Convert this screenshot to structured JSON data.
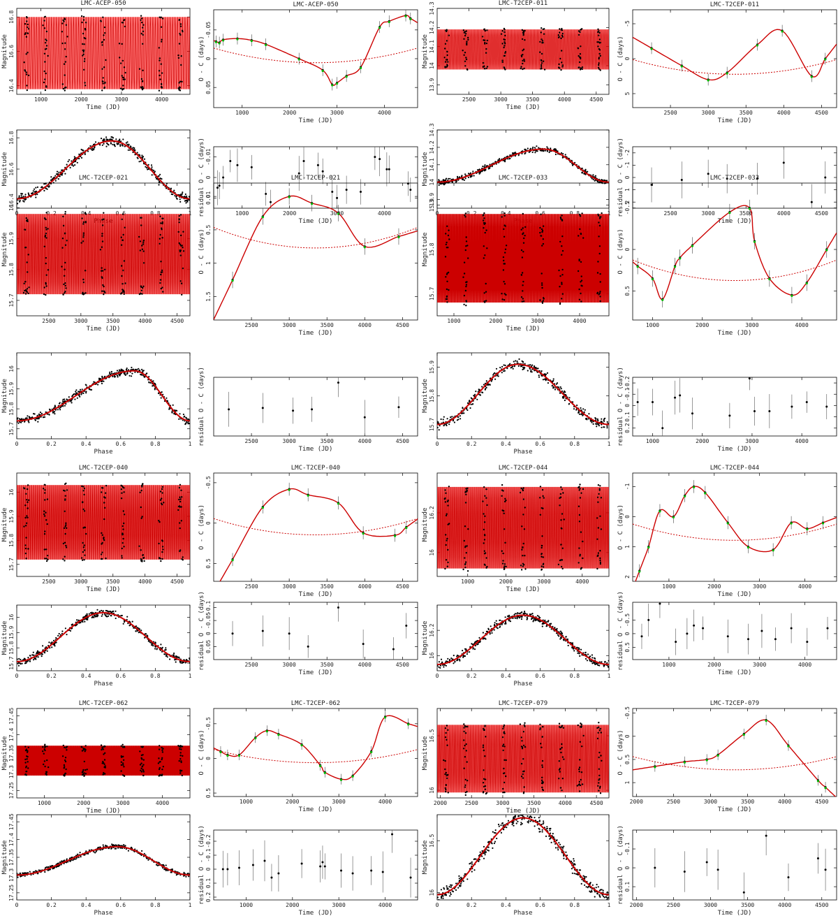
{
  "stars": [
    {
      "name": "LMC-ACEP-050",
      "light": {
        "xlim": [
          400,
          4700
        ],
        "xticks": [
          1000,
          2000,
          3000,
          4000
        ],
        "ylim": [
          16.85,
          16.35
        ],
        "yticks": [
          16.4,
          16.6,
          16.8
        ],
        "bandLo": 16.38,
        "bandHi": 16.8,
        "cycles": 70
      },
      "oc": {
        "xlim": [
          400,
          4700
        ],
        "xticks": [
          1000,
          2000,
          3000,
          4000
        ],
        "ylim": [
          -0.085,
          0.085
        ],
        "yticks": [
          -0.05,
          0,
          0.05
        ],
        "dataX": [
          450,
          520,
          600,
          900,
          1200,
          1500,
          2200,
          2700,
          2900,
          3000,
          3200,
          3500,
          3900,
          4100,
          4450,
          4550
        ],
        "dataY": [
          -0.03,
          -0.028,
          -0.033,
          -0.035,
          -0.032,
          -0.025,
          0.0,
          0.02,
          0.045,
          0.042,
          0.03,
          0.015,
          -0.055,
          -0.065,
          -0.075,
          -0.07
        ]
      },
      "phase": {
        "ylim": [
          16.85,
          16.35
        ],
        "yticks": [
          16.4,
          16.6,
          16.8
        ],
        "mMin": 16.41,
        "mMax": 16.78,
        "phMin": 0.55
      },
      "resid": {
        "xlim": [
          400,
          4700
        ],
        "xticks": [
          1000,
          2000,
          3000,
          4000
        ],
        "ylim": [
          -0.015,
          0.015
        ],
        "yticks": [
          -0.01,
          0,
          0.01
        ],
        "dataX": [
          480,
          520,
          600,
          750,
          900,
          1200,
          1500,
          1600,
          2200,
          2300,
          2600,
          2700,
          2900,
          3000,
          3200,
          3500,
          3800,
          3900,
          4050,
          4100,
          4500,
          4550
        ],
        "dataY": [
          0.005,
          0.004,
          0.0,
          -0.008,
          -0.006,
          -0.005,
          0.008,
          0.012,
          -0.002,
          -0.008,
          -0.006,
          -0.003,
          0.007,
          0.01,
          0.006,
          0.007,
          -0.01,
          -0.009,
          -0.004,
          -0.004,
          0.003,
          0.006
        ]
      }
    },
    {
      "name": "LMC-T2CEP-011",
      "light": {
        "xlim": [
          2000,
          4700
        ],
        "xticks": [
          2500,
          3000,
          3500,
          4000,
          4500
        ],
        "ylim": [
          14.3,
          13.85
        ],
        "yticks": [
          13.9,
          14.0,
          14.1,
          14.2,
          14.3
        ],
        "bandLo": 13.98,
        "bandHi": 14.19,
        "cycles": 120
      },
      "oc": {
        "xlim": [
          2000,
          4700
        ],
        "xticks": [
          2500,
          3000,
          3500,
          4000,
          4500
        ],
        "ylim": [
          -7,
          7
        ],
        "yticks": [
          -5,
          0,
          5
        ],
        "dataX": [
          2250,
          2650,
          3000,
          3250,
          3650,
          3980,
          4370,
          4550
        ],
        "dataY": [
          -1.5,
          1.0,
          3.0,
          2.0,
          -2.0,
          -4.0,
          2.5,
          0.0
        ]
      },
      "phase": {
        "ylim": [
          14.3,
          13.85
        ],
        "yticks": [
          13.9,
          14.0,
          14.1,
          14.2,
          14.3
        ],
        "mMin": 14.0,
        "mMax": 14.19,
        "phMin": 0.62
      },
      "resid": {
        "xlim": [
          2000,
          4700
        ],
        "xticks": [
          2500,
          3000,
          3500,
          4000,
          4500
        ],
        "ylim": [
          -2.5,
          2.5
        ],
        "yticks": [
          -2,
          -1,
          0,
          1,
          2
        ],
        "dataX": [
          2250,
          2650,
          3000,
          3250,
          3650,
          4000,
          4370,
          4550
        ],
        "dataY": [
          0.6,
          0.2,
          -0.3,
          0.1,
          0.1,
          -1.2,
          2.0,
          0.0
        ]
      }
    },
    {
      "name": "LMC-T2CEP-021",
      "light": {
        "xlim": [
          2000,
          4700
        ],
        "xticks": [
          2500,
          3000,
          3500,
          4000,
          4500
        ],
        "ylim": [
          16.08,
          15.65
        ],
        "yticks": [
          15.7,
          15.8,
          15.9,
          16.0
        ],
        "bandLo": 15.72,
        "bandHi": 15.98,
        "cycles": 150
      },
      "oc": {
        "xlim": [
          2000,
          4700
        ],
        "xticks": [
          2500,
          3000,
          3500,
          4000,
          4500
        ],
        "ylim": [
          -0.2,
          1.85
        ],
        "yticks": [
          0,
          0.5,
          1,
          1.5
        ],
        "dataX": [
          2250,
          2650,
          3000,
          3300,
          3650,
          4000,
          4450
        ],
        "dataY": [
          1.25,
          0.3,
          0.0,
          0.1,
          0.25,
          0.75,
          0.6
        ]
      },
      "phase": {
        "ylim": [
          16.08,
          15.65
        ],
        "yticks": [
          15.7,
          15.8,
          15.9,
          16.0
        ],
        "mMin": 15.74,
        "mMax": 15.99,
        "phMin": 0.68
      },
      "resid": {
        "xlim": [
          2000,
          4700
        ],
        "xticks": [
          2500,
          3000,
          3500,
          4000,
          4500
        ],
        "ylim": [
          -0.12,
          0.1
        ],
        "yticks": [],
        "dataX": [
          2200,
          2650,
          3050,
          3300,
          3650,
          4000,
          4450
        ],
        "dataY": [
          0.0,
          -0.005,
          0.005,
          0.0,
          -0.1,
          0.03,
          -0.008
        ]
      }
    },
    {
      "name": "LMC-T2CEP-033",
      "light": {
        "xlim": [
          600,
          4700
        ],
        "xticks": [
          1000,
          2000,
          3000,
          4000
        ],
        "ylim": [
          15.95,
          15.65
        ],
        "yticks": [
          15.7,
          15.8,
          15.9
        ],
        "bandLo": 15.68,
        "bandHi": 15.88,
        "cycles": 300
      },
      "oc": {
        "xlim": [
          600,
          4700
        ],
        "xticks": [
          1000,
          2000,
          3000,
          4000
        ],
        "ylim": [
          -0.8,
          0.85
        ],
        "yticks": [
          -0.5,
          0,
          0.5
        ],
        "dataX": [
          700,
          1000,
          1200,
          1450,
          1550,
          1800,
          2550,
          2950,
          3050,
          3350,
          3800,
          4100,
          4500
        ],
        "dataY": [
          0.2,
          0.35,
          0.6,
          0.2,
          0.1,
          -0.05,
          -0.45,
          -0.5,
          -0.1,
          0.35,
          0.55,
          0.4,
          0.0
        ]
      },
      "phase": {
        "ylim": [
          15.95,
          15.65
        ],
        "yticks": [
          15.7,
          15.8,
          15.9
        ],
        "mMin": 15.7,
        "mMax": 15.91,
        "phMin": 0.47
      },
      "resid": {
        "xlim": [
          600,
          4700
        ],
        "xticks": [
          1000,
          2000,
          3000,
          4000
        ],
        "ylim": [
          -0.25,
          0.27
        ],
        "yticks": [
          -0.2,
          -0.1,
          0,
          0.1,
          0.2
        ],
        "dataX": [
          700,
          1000,
          1200,
          1450,
          1550,
          1800,
          2550,
          2950,
          3050,
          3350,
          3800,
          4100,
          4500
        ],
        "dataY": [
          -0.03,
          -0.03,
          0.2,
          -0.07,
          -0.09,
          0.07,
          0.09,
          -0.24,
          0.05,
          0.05,
          0.01,
          -0.03,
          0.01
        ]
      }
    },
    {
      "name": "LMC-T2CEP-040",
      "light": {
        "xlim": [
          2000,
          4700
        ],
        "xticks": [
          2500,
          3000,
          3500,
          4000,
          4500
        ],
        "ylim": [
          16.08,
          15.65
        ],
        "yticks": [
          15.7,
          15.8,
          15.9,
          16.0
        ],
        "bandLo": 15.72,
        "bandHi": 16.03,
        "cycles": 160
      },
      "oc": {
        "xlim": [
          2000,
          4700
        ],
        "xticks": [
          2500,
          3000,
          3500,
          4000,
          4500
        ],
        "ylim": [
          -0.62,
          0.72
        ],
        "yticks": [
          -0.5,
          0,
          0.5
        ],
        "dataX": [
          2250,
          2650,
          3000,
          3250,
          3650,
          3980,
          4400,
          4550
        ],
        "dataY": [
          0.45,
          -0.2,
          -0.42,
          -0.35,
          -0.25,
          0.12,
          0.15,
          0.05
        ]
      },
      "phase": {
        "ylim": [
          16.08,
          15.65
        ],
        "yticks": [
          15.7,
          15.8,
          15.9,
          16.0
        ],
        "mMin": 15.71,
        "mMax": 16.03,
        "phMin": 0.5
      },
      "resid": {
        "xlim": [
          2000,
          4700
        ],
        "xticks": [
          2500,
          3000,
          3500,
          4000,
          4500
        ],
        "ylim": [
          -0.12,
          0.1
        ],
        "yticks": [
          -0.1,
          -0.05,
          0,
          0.05
        ],
        "dataX": [
          2250,
          2650,
          3000,
          3250,
          3650,
          3980,
          4380,
          4550
        ],
        "dataY": [
          0.0,
          -0.01,
          0.0,
          0.05,
          -0.1,
          0.04,
          0.06,
          -0.03
        ]
      }
    },
    {
      "name": "LMC-T2CEP-044",
      "light": {
        "xlim": [
          200,
          4700
        ],
        "xticks": [
          1000,
          2000,
          3000,
          4000
        ],
        "ylim": [
          16.4,
          15.88
        ],
        "yticks": [
          16.0,
          16.2
        ],
        "bandLo": 15.92,
        "bandHi": 16.33,
        "cycles": 160
      },
      "oc": {
        "xlim": [
          200,
          4700
        ],
        "xticks": [
          1000,
          2000,
          3000,
          4000
        ],
        "ylim": [
          -1.45,
          2.15
        ],
        "yticks": [
          -1,
          0,
          1,
          2
        ],
        "dataX": [
          350,
          550,
          800,
          1100,
          1350,
          1550,
          1800,
          2300,
          2750,
          3300,
          3700,
          4050,
          4400
        ],
        "dataY": [
          1.8,
          1.0,
          -0.2,
          0.0,
          -0.7,
          -1.0,
          -0.8,
          0.2,
          1.0,
          1.1,
          0.2,
          0.4,
          0.2
        ]
      },
      "phase": {
        "ylim": [
          16.4,
          15.88
        ],
        "yticks": [
          16.0,
          16.2
        ],
        "mMin": 15.93,
        "mMax": 16.32,
        "phMin": 0.5
      },
      "resid": {
        "xlim": [
          200,
          4700
        ],
        "xticks": [
          1000,
          2000,
          3000,
          4000
        ],
        "ylim": [
          -1.15,
          0.95
        ],
        "yticks": [
          -0.5,
          0,
          0.5
        ],
        "dataX": [
          400,
          550,
          800,
          1150,
          1400,
          1550,
          1750,
          2300,
          2750,
          3050,
          3350,
          3700,
          4050,
          4500
        ],
        "dataY": [
          0.1,
          -0.5,
          -1.1,
          0.3,
          0.0,
          -0.3,
          -0.2,
          0.1,
          0.2,
          -0.1,
          0.2,
          -0.2,
          0.3,
          -0.2
        ]
      }
    },
    {
      "name": "LMC-T2CEP-062",
      "light": {
        "xlim": [
          300,
          4700
        ],
        "xticks": [
          1000,
          2000,
          3000,
          4000
        ],
        "ylim": [
          17.47,
          17.23
        ],
        "yticks": [
          17.25,
          17.3,
          17.35,
          17.4,
          17.45
        ],
        "bandLo": 17.29,
        "bandHi": 17.37,
        "cycles": 400
      },
      "oc": {
        "xlim": [
          300,
          4700
        ],
        "xticks": [
          1000,
          2000,
          3000,
          4000
        ],
        "ylim": [
          -0.72,
          0.55
        ],
        "yticks": [
          -0.5,
          0,
          0.5
        ],
        "dataX": [
          450,
          600,
          850,
          1200,
          1450,
          1700,
          2200,
          2600,
          2700,
          3050,
          3300,
          3700,
          4000,
          4500
        ],
        "dataY": [
          -0.1,
          -0.05,
          -0.05,
          -0.3,
          -0.4,
          -0.35,
          -0.2,
          0.1,
          0.2,
          0.3,
          0.25,
          -0.1,
          -0.6,
          -0.5
        ]
      },
      "phase": {
        "ylim": [
          17.47,
          17.23
        ],
        "yticks": [
          17.25,
          17.3,
          17.35,
          17.4,
          17.45
        ],
        "mMin": 17.3,
        "mMax": 17.38,
        "phMin": 0.58
      },
      "resid": {
        "xlim": [
          300,
          4700
        ],
        "xticks": [
          1000,
          2000,
          3000,
          4000
        ],
        "ylim": [
          -0.28,
          0.22
        ],
        "yticks": [
          -0.2,
          -0.1,
          0,
          0.1,
          0.2
        ],
        "dataX": [
          500,
          600,
          850,
          1150,
          1400,
          1550,
          1700,
          2200,
          2600,
          2650,
          2700,
          3050,
          3300,
          3700,
          3950,
          4150,
          4550
        ],
        "dataY": [
          0.0,
          0.0,
          -0.01,
          -0.03,
          -0.06,
          0.06,
          0.03,
          -0.04,
          -0.02,
          -0.05,
          -0.02,
          0.01,
          0.03,
          0.01,
          0.02,
          -0.25,
          0.06
        ]
      }
    },
    {
      "name": "LMC-T2CEP-079",
      "light": {
        "xlim": [
          1950,
          4700
        ],
        "xticks": [
          2000,
          2500,
          3000,
          3500,
          4000,
          4500
        ],
        "ylim": [
          16.75,
          15.93
        ],
        "yticks": [
          16.0,
          16.5
        ],
        "bandLo": 15.98,
        "bandHi": 16.6,
        "cycles": 140
      },
      "oc": {
        "xlim": [
          1950,
          4700
        ],
        "xticks": [
          2000,
          2500,
          3000,
          3500,
          4000,
          4500
        ],
        "ylim": [
          -0.6,
          1.3
        ],
        "yticks": [
          -0.5,
          0,
          0.5,
          1
        ],
        "dataX": [
          2250,
          2650,
          2950,
          3100,
          3450,
          3750,
          4050,
          4450,
          4550
        ],
        "dataY": [
          0.65,
          0.55,
          0.5,
          0.4,
          -0.05,
          -0.35,
          0.2,
          0.95,
          1.1
        ]
      },
      "phase": {
        "ylim": [
          16.75,
          15.93
        ],
        "yticks": [
          16.0,
          16.5
        ],
        "mMin": 15.98,
        "mMax": 16.72,
        "phMin": 0.5
      },
      "resid": {
        "xlim": [
          1950,
          4700
        ],
        "xticks": [
          2000,
          2500,
          3000,
          3500,
          4000,
          4500
        ],
        "ylim": [
          -0.2,
          0.17
        ],
        "yticks": [
          -0.1,
          0,
          0.1
        ],
        "dataX": [
          2250,
          2650,
          2950,
          3100,
          3450,
          3750,
          4050,
          4450,
          4550
        ],
        "dataY": [
          0.0,
          0.02,
          -0.03,
          0.01,
          0.13,
          -0.17,
          0.05,
          -0.05,
          0.01
        ]
      }
    }
  ],
  "labels": {
    "time": "Time (JD)",
    "phase": "Phase",
    "mag": "Magnitude",
    "oc": "O - C (days)",
    "resid": "residual O - C (days)"
  },
  "phaseTicks": [
    0,
    0.2,
    0.4,
    0.6,
    0.8,
    1
  ],
  "colors": {
    "model": "#cc0000",
    "band": "#ff0000",
    "points": "#000000",
    "marker": "#00bb00"
  }
}
